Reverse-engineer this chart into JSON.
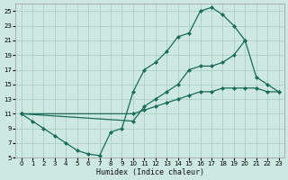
{
  "xlabel": "Humidex (Indice chaleur)",
  "bg_color": "#cce8e0",
  "grid_color": "#aacfc8",
  "line_color": "#1a6b5a",
  "xlim": [
    -0.5,
    23.5
  ],
  "ylim": [
    5,
    26
  ],
  "xticks": [
    0,
    1,
    2,
    3,
    4,
    5,
    6,
    7,
    8,
    9,
    10,
    11,
    12,
    13,
    14,
    15,
    16,
    17,
    18,
    19,
    20,
    21,
    22,
    23
  ],
  "yticks": [
    5,
    7,
    9,
    11,
    13,
    15,
    17,
    19,
    21,
    23,
    25
  ],
  "line1_x": [
    0,
    1,
    2,
    3,
    4,
    5,
    6,
    7,
    8,
    9,
    10,
    11,
    12,
    13,
    14,
    15,
    16,
    17,
    18,
    19,
    20
  ],
  "line1_y": [
    11,
    10,
    9,
    8,
    7,
    6,
    5.5,
    5.3,
    8.5,
    9,
    14,
    17,
    18,
    19.5,
    21.5,
    22,
    25,
    25.5,
    24.5,
    23,
    21
  ],
  "line2_x": [
    0,
    10,
    11,
    12,
    13,
    14,
    15,
    16,
    17,
    18,
    19,
    20,
    21,
    22,
    23
  ],
  "line2_y": [
    11,
    10,
    12,
    13,
    14,
    15,
    17,
    17.5,
    17.5,
    18,
    19,
    21,
    16,
    15,
    14
  ],
  "line3_x": [
    0,
    10,
    11,
    12,
    13,
    14,
    15,
    16,
    17,
    18,
    19,
    20,
    21,
    22,
    23
  ],
  "line3_y": [
    11,
    11,
    11.5,
    12,
    12.5,
    13,
    13.5,
    14,
    14,
    14.5,
    14.5,
    14.5,
    14.5,
    14,
    14
  ],
  "marker": "D",
  "markersize": 2.5,
  "linewidth": 0.9,
  "tick_fontsize": 5,
  "xlabel_fontsize": 6
}
